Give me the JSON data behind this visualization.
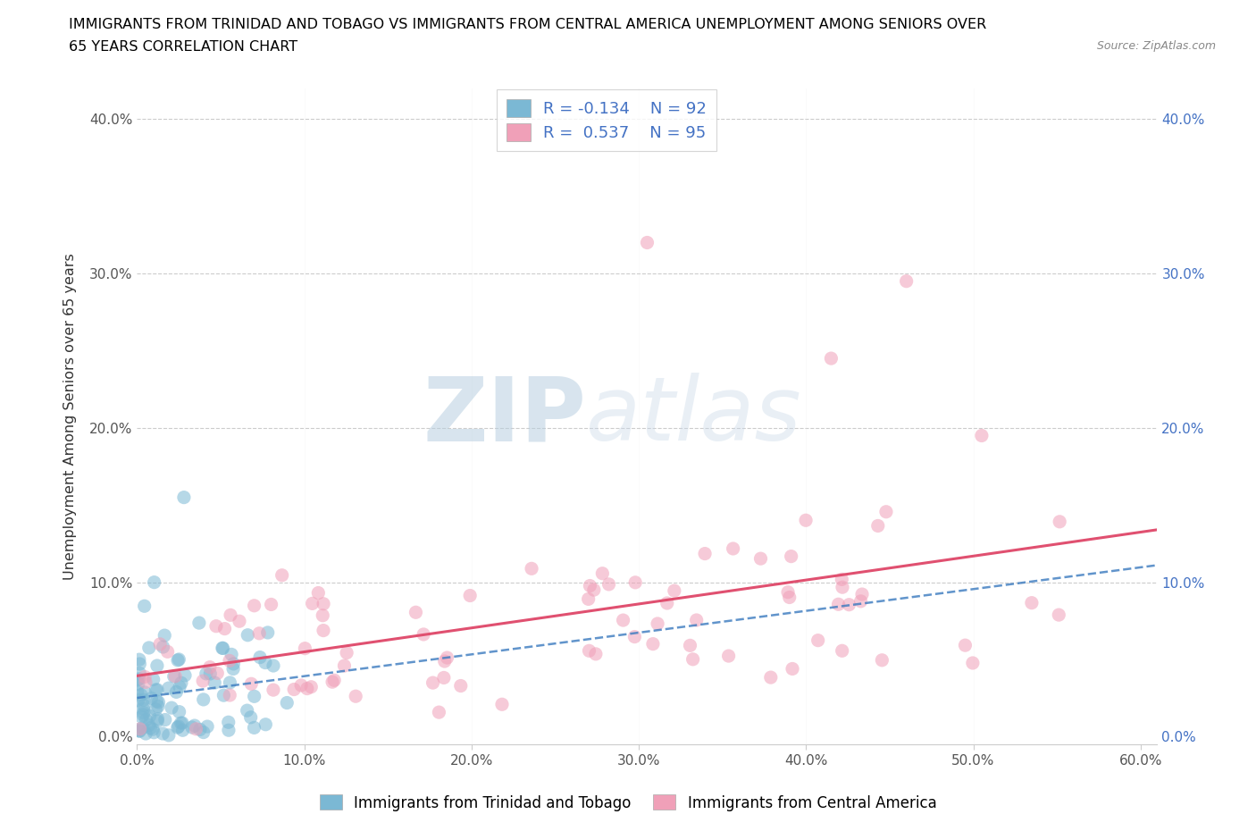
{
  "title_line1": "IMMIGRANTS FROM TRINIDAD AND TOBAGO VS IMMIGRANTS FROM CENTRAL AMERICA UNEMPLOYMENT AMONG SENIORS OVER",
  "title_line2": "65 YEARS CORRELATION CHART",
  "source": "Source: ZipAtlas.com",
  "ylabel": "Unemployment Among Seniors over 65 years",
  "legend_label1": "Immigrants from Trinidad and Tobago",
  "legend_label2": "Immigrants from Central America",
  "xlim": [
    0.0,
    0.61
  ],
  "ylim": [
    -0.005,
    0.42
  ],
  "xticks": [
    0.0,
    0.1,
    0.2,
    0.3,
    0.4,
    0.5,
    0.6
  ],
  "yticks": [
    0.0,
    0.1,
    0.2,
    0.3,
    0.4
  ],
  "xtick_labels": [
    "0.0%",
    "10.0%",
    "20.0%",
    "30.0%",
    "40.0%",
    "50.0%",
    "60.0%"
  ],
  "ytick_labels_left": [
    "0.0%",
    "10.0%",
    "20.0%",
    "30.0%",
    "40.0%"
  ],
  "ytick_labels_right": [
    "0.0%",
    "10.0%",
    "20.0%",
    "30.0%",
    "40.0%"
  ],
  "legend_r1": "R = -0.134",
  "legend_n1": "N = 92",
  "legend_r2": "R =  0.537",
  "legend_n2": "N = 95",
  "color_blue": "#7bb8d4",
  "color_pink": "#f0a0b8",
  "color_blue_line": "#3a7abf",
  "color_pink_line": "#e05070",
  "watermark_zip": "ZIP",
  "watermark_atlas": "atlas"
}
